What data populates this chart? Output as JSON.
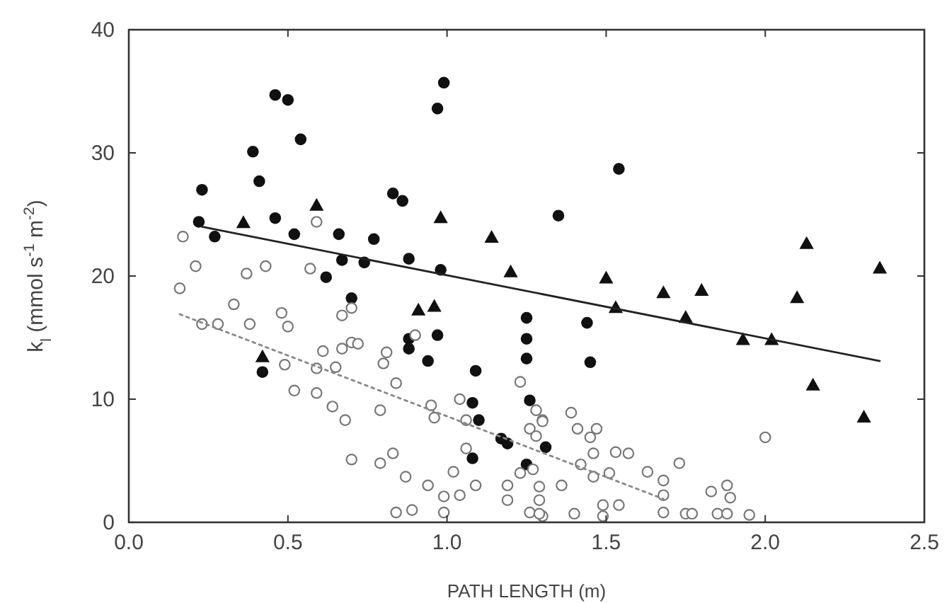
{
  "chart_data": {
    "type": "scatter",
    "xlabel": "PATH LENGTH (m)",
    "ylabel": "k$_{l}$ (mmol s$^{-1}$ m$^{-2}$)",
    "xlim": [
      0,
      2.5
    ],
    "ylim": [
      0,
      40
    ],
    "xticks": [
      {
        "value": 0,
        "label": "0.0"
      },
      0.5,
      {
        "value": 1,
        "label": "1.0"
      },
      1.5,
      {
        "value": 2,
        "label": "2.0"
      },
      2.5
    ],
    "yticks": [
      0,
      10,
      20,
      30,
      40
    ],
    "grid": false,
    "series": [
      {
        "marker": "circle",
        "color": "#111111",
        "x": [
          0.99,
          0.97,
          0.46,
          0.5,
          0.54,
          0.39,
          0.41,
          0.23,
          0.83,
          0.86,
          0.22,
          0.46,
          0.52,
          0.66,
          0.27,
          0.77,
          0.67,
          0.74,
          0.88,
          0.98,
          0.62,
          0.7,
          0.42,
          0.88,
          0.88,
          0.97,
          0.94,
          1.09,
          1.25,
          1.25,
          1.25,
          1.26,
          1.08,
          1.1,
          1.17,
          1.19,
          1.31,
          1.08,
          1.25,
          1.54,
          1.35,
          1.44,
          1.45
        ],
        "values": [
          35.7,
          33.6,
          34.7,
          34.3,
          31.1,
          30.1,
          27.7,
          27,
          26.7,
          26.1,
          24.4,
          24.7,
          23.4,
          23.4,
          23.2,
          23,
          21.3,
          21.1,
          21.4,
          20.5,
          19.9,
          18.2,
          12.2,
          14.9,
          14.1,
          15.2,
          13.1,
          12.3,
          16.6,
          14.9,
          13.3,
          9.9,
          9.7,
          8.3,
          6.8,
          6.4,
          6.1,
          5.2,
          4.7,
          28.7,
          24.9,
          16.2,
          13
        ]
      },
      {
        "marker": "triangle",
        "color": "#111111",
        "x": [
          0.59,
          0.36,
          0.98,
          1.14,
          1.2,
          0.91,
          0.96,
          0.42,
          1.5,
          1.53,
          1.68,
          1.8,
          1.75,
          1.93,
          2.02,
          2.13,
          2.36,
          2.1,
          2.15,
          2.31
        ],
        "values": [
          25.7,
          24.3,
          24.7,
          23.1,
          20.3,
          17.2,
          17.5,
          13.4,
          19.8,
          17.4,
          18.6,
          18.8,
          16.6,
          14.8,
          14.8,
          22.6,
          20.6,
          18.2,
          11.1,
          8.5
        ]
      },
      {
        "marker": "circle",
        "color": "#ffffff",
        "x": [
          0.17,
          0.59,
          0.21,
          0.37,
          0.43,
          0.57,
          0.16,
          0.33,
          0.23,
          0.28,
          0.38,
          0.48,
          0.5,
          0.67,
          0.7,
          0.61,
          0.67,
          0.7,
          0.72,
          0.81,
          0.9,
          0.49,
          0.59,
          0.65,
          0.8,
          0.84,
          0.52,
          0.59,
          0.64,
          0.68,
          0.79,
          0.95,
          0.96,
          1.04,
          1.06,
          1.23,
          1.28,
          1.3,
          1.26,
          1.28,
          1.06,
          0.7,
          0.79,
          0.83,
          0.87,
          0.94,
          1.02,
          1.09,
          0.99,
          1.04,
          1.19,
          1.19,
          1.23,
          1.27,
          1.29,
          1.29,
          0.84,
          0.89,
          0.99,
          1.26,
          1.3,
          1.39,
          1.3,
          1.41,
          1.47,
          1.45,
          1.46,
          1.53,
          1.57,
          1.42,
          1.51,
          1.46,
          1.36,
          1.63,
          1.73,
          1.68,
          1.68,
          1.83,
          1.88,
          1.89,
          2.0,
          1.49,
          1.54,
          1.4,
          1.49,
          1.68,
          1.75,
          1.77,
          1.85,
          1.88,
          1.95,
          1.29
        ],
        "values": [
          23.2,
          24.4,
          20.8,
          20.2,
          20.8,
          20.6,
          19,
          17.7,
          16.1,
          16.1,
          16.1,
          17,
          15.9,
          16.8,
          17.4,
          13.9,
          14.1,
          14.6,
          14.5,
          13.8,
          15.2,
          12.8,
          12.5,
          12.6,
          12.9,
          11.3,
          10.7,
          10.5,
          9.4,
          8.3,
          9.1,
          9.5,
          8.5,
          10,
          8.3,
          11.4,
          9.1,
          8.3,
          7.6,
          7,
          6,
          5.1,
          4.8,
          5.6,
          3.7,
          3,
          4.1,
          3,
          2.1,
          2.2,
          3,
          1.8,
          4,
          4.3,
          2.9,
          1.8,
          0.8,
          1,
          0.8,
          0.8,
          0.5,
          8.9,
          8.2,
          7.6,
          7.6,
          6.9,
          5.6,
          5.7,
          5.6,
          4.7,
          4,
          3.7,
          3,
          4.1,
          4.8,
          3.4,
          2.2,
          2.5,
          3,
          2,
          6.9,
          1.4,
          1.4,
          0.7,
          0.5,
          0.8,
          0.7,
          0.7,
          0.7,
          0.7,
          0.6,
          0.7
        ]
      },
      {
        "type": "line",
        "marker": "none",
        "line_style": "solid",
        "color": "#222222",
        "x": [
          0.23,
          2.36
        ],
        "values": [
          24,
          13.1
        ]
      },
      {
        "type": "line",
        "marker": "none",
        "line_style": "dotted",
        "color": "#888888",
        "x": [
          0.16,
          1.68
        ],
        "values": [
          16.9,
          1.9
        ]
      }
    ]
  }
}
